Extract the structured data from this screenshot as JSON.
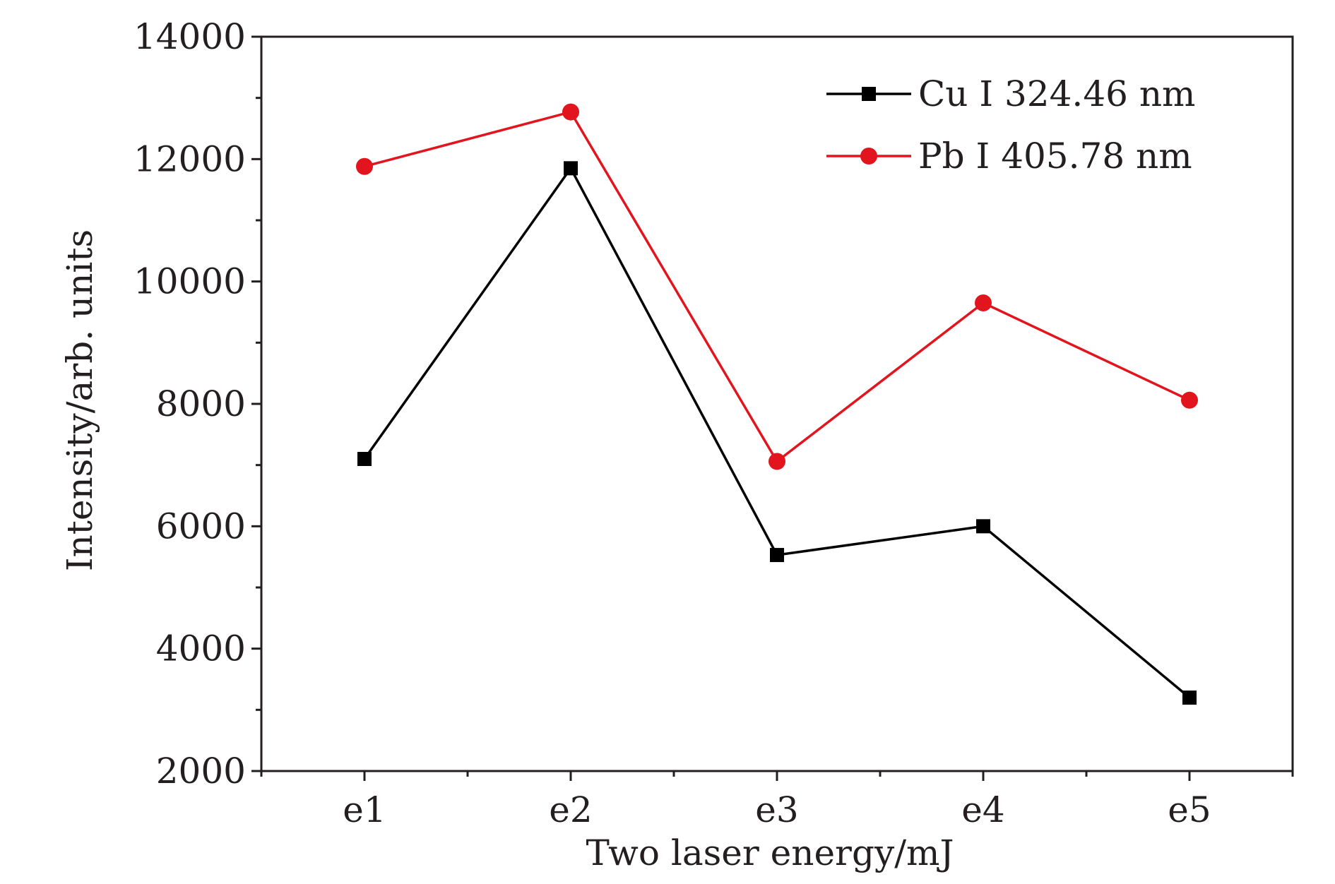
{
  "chart_data": {
    "type": "line",
    "title": "",
    "xlabel": "Two laser energy/mJ",
    "ylabel": "Intensity/arb. units",
    "categories": [
      "e1",
      "e2",
      "e3",
      "e4",
      "e5"
    ],
    "ylim": [
      2000,
      14000
    ],
    "yticks": [
      "2000",
      "4000",
      "6000",
      "8000",
      "10000",
      "12000",
      "14000"
    ],
    "grid": false,
    "legend_position": "top-right",
    "series": [
      {
        "name": "Cu I 324.46 nm",
        "values": [
          7100,
          11850,
          5530,
          6000,
          3200
        ],
        "color": "#000000",
        "marker": "square"
      },
      {
        "name": "Pb I 405.78 nm",
        "values": [
          11880,
          12770,
          7060,
          9650,
          8060
        ],
        "color": "#e2141d",
        "marker": "circle"
      }
    ]
  }
}
